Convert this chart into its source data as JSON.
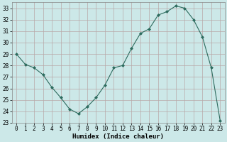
{
  "x": [
    0,
    1,
    2,
    3,
    4,
    5,
    6,
    7,
    8,
    9,
    10,
    11,
    12,
    13,
    14,
    15,
    16,
    17,
    18,
    19,
    20,
    21,
    22,
    23
  ],
  "y": [
    29.0,
    28.1,
    27.8,
    27.2,
    26.1,
    25.2,
    24.2,
    23.8,
    24.4,
    25.2,
    26.3,
    27.8,
    28.0,
    29.5,
    30.8,
    31.2,
    32.4,
    32.7,
    33.2,
    33.0,
    32.0,
    30.5,
    27.8,
    23.2
  ],
  "line_color": "#2d6b5e",
  "marker": "D",
  "marker_size": 2.0,
  "bg_color": "#cce8e8",
  "grid_color": "#b8a8a8",
  "xlabel": "Humidex (Indice chaleur)",
  "xlim": [
    -0.5,
    23.5
  ],
  "ylim": [
    23,
    33.5
  ],
  "yticks": [
    23,
    24,
    25,
    26,
    27,
    28,
    29,
    30,
    31,
    32,
    33
  ],
  "xticks": [
    0,
    1,
    2,
    3,
    4,
    5,
    6,
    7,
    8,
    9,
    10,
    11,
    12,
    13,
    14,
    15,
    16,
    17,
    18,
    19,
    20,
    21,
    22,
    23
  ],
  "tick_fontsize": 5.5,
  "xlabel_fontsize": 6.5
}
